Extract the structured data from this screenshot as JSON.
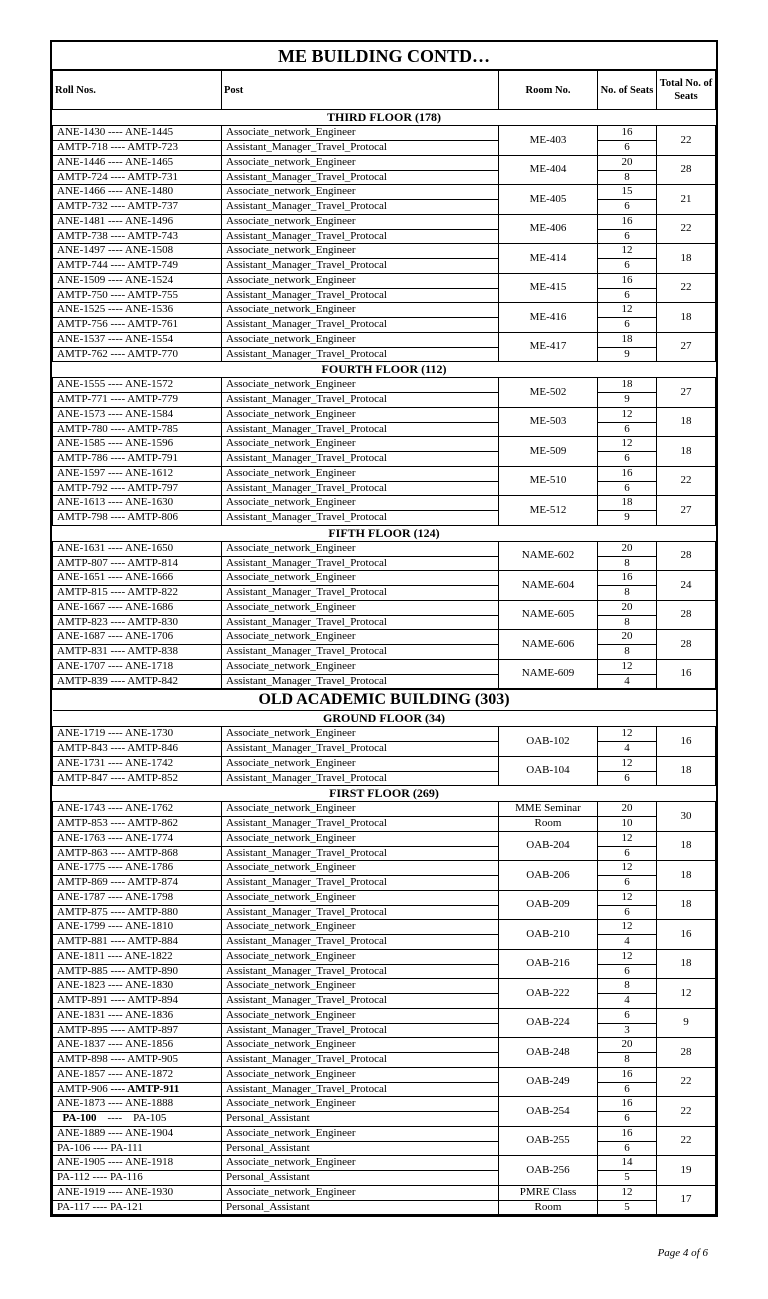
{
  "title": "ME  BUILDING CONTD…",
  "headers": {
    "roll": "Roll Nos.",
    "post": "Post",
    "room": "Room No.",
    "seats": "No. of Seats",
    "total": "Total No. of Seats"
  },
  "page_footer": "Page 4 of 6",
  "sections": [
    {
      "type": "floor",
      "label": "THIRD FLOOR (178)",
      "groups": [
        {
          "room": "ME-403",
          "total": 22,
          "rows": [
            {
              "roll": "ANE-1430  ----  ANE-1445",
              "post": "Associate_network_Engineer",
              "seats": 16
            },
            {
              "roll": "AMTP-718 ---- AMTP-723",
              "post": "Assistant_Manager_Travel_Protocal",
              "seats": 6
            }
          ]
        },
        {
          "room": "ME-404",
          "total": 28,
          "rows": [
            {
              "roll": "ANE-1446 ---- ANE-1465",
              "post": "Associate_network_Engineer",
              "seats": 20
            },
            {
              "roll": "AMTP-724 ---- AMTP-731",
              "post": "Assistant_Manager_Travel_Protocal",
              "seats": 8
            }
          ]
        },
        {
          "room": "ME-405",
          "total": 21,
          "rows": [
            {
              "roll": "ANE-1466 ---- ANE-1480",
              "post": "Associate_network_Engineer",
              "seats": 15
            },
            {
              "roll": "AMTP-732 ---- AMTP-737",
              "post": "Assistant_Manager_Travel_Protocal",
              "seats": 6
            }
          ]
        },
        {
          "room": "ME-406",
          "total": 22,
          "rows": [
            {
              "roll": "ANE-1481 ---- ANE-1496",
              "post": "Associate_network_Engineer",
              "seats": 16
            },
            {
              "roll": "AMTP-738 ---- AMTP-743",
              "post": "Assistant_Manager_Travel_Protocal",
              "seats": 6
            }
          ]
        },
        {
          "room": "ME-414",
          "total": 18,
          "rows": [
            {
              "roll": "ANE-1497 ---- ANE-1508",
              "post": "Associate_network_Engineer",
              "seats": 12
            },
            {
              "roll": "AMTP-744 ---- AMTP-749",
              "post": "Assistant_Manager_Travel_Protocal",
              "seats": 6
            }
          ]
        },
        {
          "room": "ME-415",
          "total": 22,
          "rows": [
            {
              "roll": "ANE-1509 ---- ANE-1524",
              "post": "Associate_network_Engineer",
              "seats": 16
            },
            {
              "roll": "AMTP-750 ---- AMTP-755",
              "post": "Assistant_Manager_Travel_Protocal",
              "seats": 6
            }
          ]
        },
        {
          "room": "ME-416",
          "total": 18,
          "rows": [
            {
              "roll": "ANE-1525 ---- ANE-1536",
              "post": "Associate_network_Engineer",
              "seats": 12
            },
            {
              "roll": "AMTP-756 ---- AMTP-761",
              "post": "Assistant_Manager_Travel_Protocal",
              "seats": 6
            }
          ]
        },
        {
          "room": "ME-417",
          "total": 27,
          "rows": [
            {
              "roll": "ANE-1537 ---- ANE-1554",
              "post": "Associate_network_Engineer",
              "seats": 18
            },
            {
              "roll": "AMTP-762 ---- AMTP-770",
              "post": "Assistant_Manager_Travel_Protocal",
              "seats": 9
            }
          ]
        }
      ]
    },
    {
      "type": "floor",
      "label": "FOURTH FLOOR (112)",
      "groups": [
        {
          "room": "ME-502",
          "total": 27,
          "rows": [
            {
              "roll": "ANE-1555 ---- ANE-1572",
              "post": "Associate_network_Engineer",
              "seats": 18
            },
            {
              "roll": "AMTP-771 ---- AMTP-779",
              "post": "Assistant_Manager_Travel_Protocal",
              "seats": 9
            }
          ]
        },
        {
          "room": "ME-503",
          "total": 18,
          "rows": [
            {
              "roll": "ANE-1573 ---- ANE-1584",
              "post": "Associate_network_Engineer",
              "seats": 12
            },
            {
              "roll": "AMTP-780 ---- AMTP-785",
              "post": "Assistant_Manager_Travel_Protocal",
              "seats": 6
            }
          ]
        },
        {
          "room": "ME-509",
          "total": 18,
          "rows": [
            {
              "roll": "ANE-1585 ---- ANE-1596",
              "post": "Associate_network_Engineer",
              "seats": 12
            },
            {
              "roll": "AMTP-786 ---- AMTP-791",
              "post": "Assistant_Manager_Travel_Protocal",
              "seats": 6
            }
          ]
        },
        {
          "room": "ME-510",
          "total": 22,
          "rows": [
            {
              "roll": "ANE-1597 ---- ANE-1612",
              "post": "Associate_network_Engineer",
              "seats": 16
            },
            {
              "roll": "AMTP-792 ---- AMTP-797",
              "post": "Assistant_Manager_Travel_Protocal",
              "seats": 6
            }
          ]
        },
        {
          "room": "ME-512",
          "total": 27,
          "rows": [
            {
              "roll": "ANE-1613 ---- ANE-1630",
              "post": "Associate_network_Engineer",
              "seats": 18
            },
            {
              "roll": "AMTP-798 ---- AMTP-806",
              "post": "Assistant_Manager_Travel_Protocal",
              "seats": 9
            }
          ]
        }
      ]
    },
    {
      "type": "floor",
      "label": "FIFTH FLOOR (124)",
      "groups": [
        {
          "room": "NAME-602",
          "total": 28,
          "rows": [
            {
              "roll": "ANE-1631 ---- ANE-1650",
              "post": "Associate_network_Engineer",
              "seats": 20
            },
            {
              "roll": "AMTP-807 ---- AMTP-814",
              "post": "Assistant_Manager_Travel_Protocal",
              "seats": 8
            }
          ]
        },
        {
          "room": "NAME-604",
          "total": 24,
          "rows": [
            {
              "roll": "ANE-1651 ---- ANE-1666",
              "post": "Associate_network_Engineer",
              "seats": 16
            },
            {
              "roll": "AMTP-815 ---- AMTP-822",
              "post": "Assistant_Manager_Travel_Protocal",
              "seats": 8
            }
          ]
        },
        {
          "room": "NAME-605",
          "total": 28,
          "rows": [
            {
              "roll": "ANE-1667 ---- ANE-1686",
              "post": "Associate_network_Engineer",
              "seats": 20
            },
            {
              "roll": "AMTP-823 ---- AMTP-830",
              "post": "Assistant_Manager_Travel_Protocal",
              "seats": 8
            }
          ]
        },
        {
          "room": "NAME-606",
          "total": 28,
          "rows": [
            {
              "roll": "ANE-1687 ---- ANE-1706",
              "post": "Associate_network_Engineer",
              "seats": 20
            },
            {
              "roll": "AMTP-831 ---- AMTP-838",
              "post": "Assistant_Manager_Travel_Protocal",
              "seats": 8
            }
          ]
        },
        {
          "room": "NAME-609",
          "total": 16,
          "rows": [
            {
              "roll": "ANE-1707 ---- ANE-1718",
              "post": "Associate_network_Engineer",
              "seats": 12
            },
            {
              "roll": "AMTP-839 ---- AMTP-842",
              "post": "Assistant_Manager_Travel_Protocal",
              "seats": 4
            }
          ]
        }
      ]
    },
    {
      "type": "building",
      "label": "OLD ACADEMIC BUILDING (303)"
    },
    {
      "type": "floor",
      "label": "GROUND FLOOR (34)",
      "groups": [
        {
          "room": "OAB-102",
          "total": 16,
          "rows": [
            {
              "roll": "ANE-1719 ---- ANE-1730",
              "post": "Associate_network_Engineer",
              "seats": 12
            },
            {
              "roll": "AMTP-843 ---- AMTP-846",
              "post": "Assistant_Manager_Travel_Protocal",
              "seats": 4
            }
          ]
        },
        {
          "room": "OAB-104",
          "total": 18,
          "rows": [
            {
              "roll": "ANE-1731 ---- ANE-1742",
              "post": "Associate_network_Engineer",
              "seats": 12
            },
            {
              "roll": "AMTP-847 ---- AMTP-852",
              "post": "Assistant_Manager_Travel_Protocal",
              "seats": 6
            }
          ]
        }
      ]
    },
    {
      "type": "floor",
      "label": "FIRST FLOOR (269)",
      "groups": [
        {
          "room_rows": [
            "MME Seminar",
            "Room"
          ],
          "total": 30,
          "rows": [
            {
              "roll": "ANE-1743 ---- ANE-1762",
              "post": "Associate_network_Engineer",
              "seats": 20
            },
            {
              "roll": "AMTP-853 ---- AMTP-862",
              "post": "Assistant_Manager_Travel_Protocal",
              "seats": 10
            }
          ]
        },
        {
          "room": "OAB-204",
          "total": 18,
          "rows": [
            {
              "roll": "ANE-1763 ---- ANE-1774",
              "post": "Associate_network_Engineer",
              "seats": 12
            },
            {
              "roll": "AMTP-863 ---- AMTP-868",
              "post": "Assistant_Manager_Travel_Protocal",
              "seats": 6
            }
          ]
        },
        {
          "room": "OAB-206",
          "total": 18,
          "rows": [
            {
              "roll": "ANE-1775 ---- ANE-1786",
              "post": "Associate_network_Engineer",
              "seats": 12
            },
            {
              "roll": "AMTP-869 ---- AMTP-874",
              "post": "Assistant_Manager_Travel_Protocal",
              "seats": 6
            }
          ]
        },
        {
          "room": "OAB-209",
          "total": 18,
          "rows": [
            {
              "roll": "ANE-1787 ---- ANE-1798",
              "post": "Associate_network_Engineer",
              "seats": 12
            },
            {
              "roll": "AMTP-875 ---- AMTP-880",
              "post": "Assistant_Manager_Travel_Protocal",
              "seats": 6
            }
          ]
        },
        {
          "room": "OAB-210",
          "total": 16,
          "rows": [
            {
              "roll": "ANE-1799 ---- ANE-1810",
              "post": "Associate_network_Engineer",
              "seats": 12
            },
            {
              "roll": "AMTP-881 ---- AMTP-884",
              "post": "Assistant_Manager_Travel_Protocal",
              "seats": 4
            }
          ]
        },
        {
          "room": "OAB-216",
          "total": 18,
          "rows": [
            {
              "roll": "ANE-1811 ---- ANE-1822",
              "post": "Associate_network_Engineer",
              "seats": 12
            },
            {
              "roll": "AMTP-885 ---- AMTP-890",
              "post": "Assistant_Manager_Travel_Protocal",
              "seats": 6
            }
          ]
        },
        {
          "room": "OAB-222",
          "total": 12,
          "rows": [
            {
              "roll": "ANE-1823 ---- ANE-1830",
              "post": "Associate_network_Engineer",
              "seats": 8
            },
            {
              "roll": "AMTP-891 ---- AMTP-894",
              "post": "Assistant_Manager_Travel_Protocal",
              "seats": 4
            }
          ]
        },
        {
          "room": "OAB-224",
          "total": 9,
          "rows": [
            {
              "roll": "ANE-1831 ---- ANE-1836",
              "post": "Associate_network_Engineer",
              "seats": 6
            },
            {
              "roll": "AMTP-895 ---- AMTP-897",
              "post": "Assistant_Manager_Travel_Protocal",
              "seats": 3
            }
          ]
        },
        {
          "room": "OAB-248",
          "total": 28,
          "rows": [
            {
              "roll": "ANE-1837 ---- ANE-1856",
              "post": "Associate_network_Engineer",
              "seats": 20
            },
            {
              "roll": "AMTP-898 ---- AMTP-905",
              "post": "Assistant_Manager_Travel_Protocal",
              "seats": 8
            }
          ]
        },
        {
          "room": "OAB-249",
          "total": 22,
          "rows": [
            {
              "roll": "ANE-1857 ---- ANE-1872",
              "post": "Associate_network_Engineer",
              "seats": 16
            },
            {
              "roll_html": "AMTP-906 <b>---- AMTP-911</b>",
              "post": "Assistant_Manager_Travel_Protocal",
              "seats": 6
            }
          ]
        },
        {
          "room": "OAB-254",
          "total": 22,
          "rows": [
            {
              "roll": "ANE-1873 ---- ANE-1888",
              "post": "Associate_network_Engineer",
              "seats": 16
            },
            {
              "roll_html": "&nbsp;&nbsp;<b>PA-100</b>&nbsp;&nbsp;&nbsp;&nbsp;----&nbsp;&nbsp;&nbsp;&nbsp;PA-105",
              "post": "Personal_Assistant",
              "seats": 6
            }
          ]
        },
        {
          "room": "OAB-255",
          "total": 22,
          "rows": [
            {
              "roll": "ANE-1889 ---- ANE-1904",
              "post": "Associate_network_Engineer",
              "seats": 16
            },
            {
              "roll": "  PA-106    ----    PA-111",
              "post": "Personal_Assistant",
              "seats": 6
            }
          ]
        },
        {
          "room": "OAB-256",
          "total": 19,
          "rows": [
            {
              "roll": "ANE-1905 ---- ANE-1918",
              "post": "Associate_network_Engineer",
              "seats": 14
            },
            {
              "roll": "  PA-112    ----    PA-116",
              "post": "Personal_Assistant",
              "seats": 5
            }
          ]
        },
        {
          "room_rows": [
            "PMRE Class",
            "Room"
          ],
          "total": 17,
          "rows": [
            {
              "roll": "ANE-1919 ---- ANE-1930",
              "post": "Associate_network_Engineer",
              "seats": 12
            },
            {
              "roll": "  PA-117    ----    PA-121",
              "post": "Personal_Assistant",
              "seats": 5
            }
          ]
        }
      ]
    }
  ]
}
